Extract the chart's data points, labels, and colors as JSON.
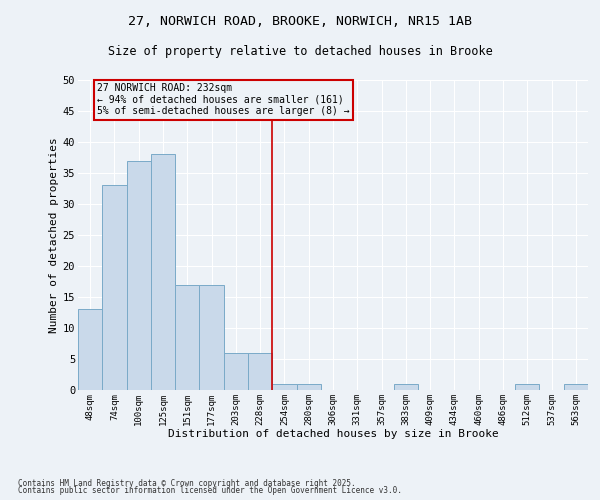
{
  "title_line1": "27, NORWICH ROAD, BROOKE, NORWICH, NR15 1AB",
  "title_line2": "Size of property relative to detached houses in Brooke",
  "xlabel": "Distribution of detached houses by size in Brooke",
  "ylabel": "Number of detached properties",
  "categories": [
    "48sqm",
    "74sqm",
    "100sqm",
    "125sqm",
    "151sqm",
    "177sqm",
    "203sqm",
    "228sqm",
    "254sqm",
    "280sqm",
    "306sqm",
    "331sqm",
    "357sqm",
    "383sqm",
    "409sqm",
    "434sqm",
    "460sqm",
    "486sqm",
    "512sqm",
    "537sqm",
    "563sqm"
  ],
  "values": [
    13,
    33,
    37,
    38,
    17,
    17,
    6,
    6,
    1,
    1,
    0,
    0,
    0,
    1,
    0,
    0,
    0,
    0,
    1,
    0,
    1
  ],
  "bar_color": "#c9d9ea",
  "bar_edge_color": "#7aaac8",
  "vline_x": 7.5,
  "vline_color": "#cc0000",
  "annotation_text": "27 NORWICH ROAD: 232sqm\n← 94% of detached houses are smaller (161)\n5% of semi-detached houses are larger (8) →",
  "annotation_box_color": "#cc0000",
  "ylim": [
    0,
    50
  ],
  "yticks": [
    0,
    5,
    10,
    15,
    20,
    25,
    30,
    35,
    40,
    45,
    50
  ],
  "background_color": "#edf2f7",
  "grid_color": "#ffffff",
  "footer_line1": "Contains HM Land Registry data © Crown copyright and database right 2025.",
  "footer_line2": "Contains public sector information licensed under the Open Government Licence v3.0."
}
